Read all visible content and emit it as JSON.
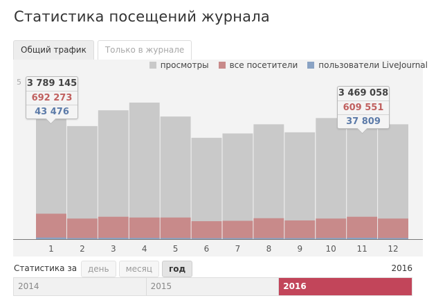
{
  "page": {
    "title": "Статистика посещений журнала"
  },
  "tabs": [
    {
      "label": "Общий трафик",
      "active": true
    },
    {
      "label": "Только в журнале",
      "active": false
    }
  ],
  "legend": {
    "views": "просмотры",
    "visitors": "все посетители",
    "users": "пользователи LiveJournal"
  },
  "colors": {
    "views": "#c9c9c9",
    "visitors": "#c88a8a",
    "users": "#8aa3c4",
    "accent": "#c2455a"
  },
  "axis": {
    "y_cut_label": "5"
  },
  "tooltips": [
    {
      "views": "3 789 145",
      "visitors": "692 273",
      "users": "43 476"
    },
    {
      "views": "3 469 058",
      "visitors": "609 551",
      "users": "37 809"
    }
  ],
  "chart_data": {
    "type": "bar",
    "categories": [
      "1",
      "2",
      "3",
      "4",
      "5",
      "6",
      "7",
      "8",
      "9",
      "10",
      "11",
      "12"
    ],
    "series": [
      {
        "name": "просмотры",
        "values": [
          3789145,
          3080000,
          3510000,
          3720000,
          3340000,
          2760000,
          2880000,
          3130000,
          2910000,
          3300000,
          3469058,
          3130000
        ]
      },
      {
        "name": "все посетители",
        "values": [
          692273,
          560000,
          610000,
          590000,
          590000,
          490000,
          500000,
          570000,
          510000,
          560000,
          609551,
          560000
        ]
      },
      {
        "name": "пользователи LiveJournal",
        "values": [
          43476,
          30000,
          36000,
          34000,
          33000,
          27000,
          28000,
          31000,
          29000,
          33000,
          37809,
          31000
        ]
      }
    ],
    "ylim": [
      0,
      4400000
    ],
    "legend_position": "top-right",
    "grid": false
  },
  "period": {
    "label": "Статистика за",
    "options": [
      {
        "label": "день",
        "active": false
      },
      {
        "label": "месяц",
        "active": false
      },
      {
        "label": "год",
        "active": true
      }
    ],
    "current_year": "2016"
  },
  "years": [
    {
      "label": "2014",
      "active": false
    },
    {
      "label": "2015",
      "active": false
    },
    {
      "label": "2016",
      "active": true
    }
  ]
}
